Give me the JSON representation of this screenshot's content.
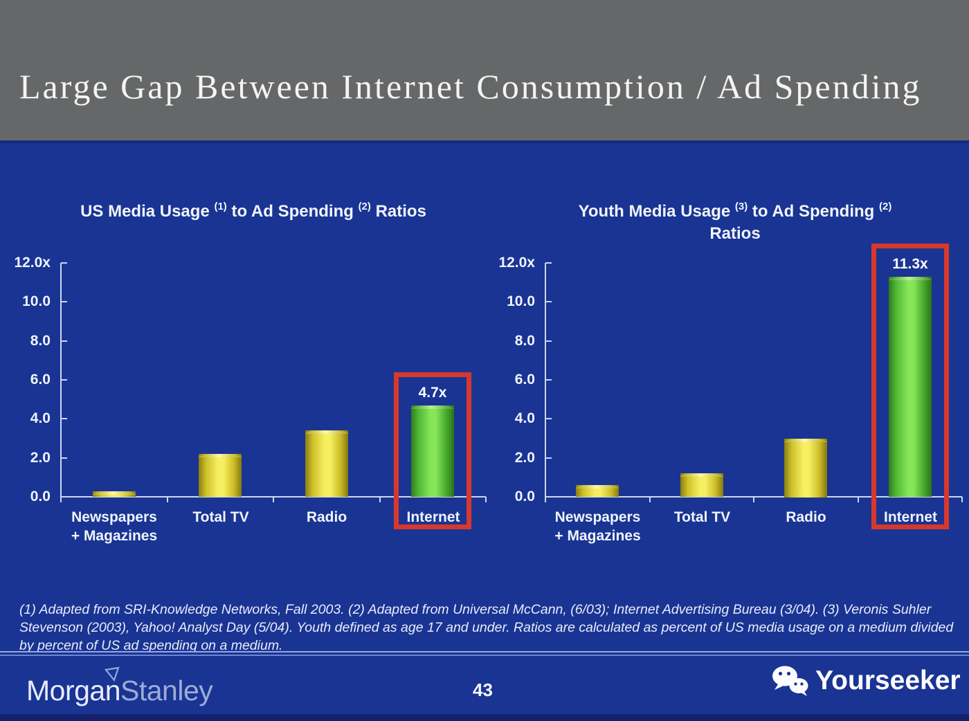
{
  "header": {
    "title": "Large Gap Between Internet Consumption / Ad Spending"
  },
  "footnote": {
    "lines": [
      "(1) Adapted from SRI-Knowledge Networks, Fall 2003.  (2) Adapted from Universal McCann, (6/03); Internet Advertising Bureau (3/04). (3) Veronis Suhler",
      "Stevenson (2003), Yahoo! Analyst Day (5/04).  Youth defined as age 17 and under.  Ratios are calculated as percent of US media usage on a medium divided",
      "by percent of US ad spending on a medium."
    ]
  },
  "footer": {
    "brand_part1": "Morgan",
    "brand_part2": "Stanley",
    "page_number": "43",
    "watermark_label": "Yourseeker",
    "watermark_icon": "wechat-icon",
    "brand_icon": "morgan-stanley-triangle-icon"
  },
  "colors": {
    "slide_blue": "#1a3494",
    "header_gray": "#666769",
    "highlight_red": "#d7382b",
    "bar_yellow": "#f6ef62",
    "bar_green": "#86e558",
    "axis_light_blue": "#ccd8f2",
    "bottom_strip_navy": "#14206b"
  },
  "chart_data": [
    {
      "type": "bar",
      "title": "US Media Usage (1) to Ad Spending (2) Ratios",
      "title_segments": [
        {
          "text": "US Media Usage "
        },
        {
          "text": "(1)",
          "sup": true
        },
        {
          "text": " to Ad Spending "
        },
        {
          "text": "(2)",
          "sup": true
        },
        {
          "text": " Ratios"
        }
      ],
      "title_line2": "",
      "categories": [
        [
          "Newspapers",
          "+ Magazines"
        ],
        [
          "Total TV"
        ],
        [
          "Radio"
        ],
        [
          "Internet"
        ]
      ],
      "values": [
        0.3,
        2.2,
        3.4,
        4.7
      ],
      "bar_colors": [
        "yellow",
        "yellow",
        "yellow",
        "green"
      ],
      "highlight": {
        "index": 3,
        "label": "4.7x"
      },
      "yticks": [
        "12.0x",
        "10.0",
        "8.0",
        "6.0",
        "4.0",
        "2.0",
        "0.0"
      ],
      "ylim": [
        0,
        12
      ],
      "xlabel": "",
      "ylabel": "",
      "grid": false,
      "legend": "none"
    },
    {
      "type": "bar",
      "title": "Youth Media Usage (3) to Ad Spending (2) Ratios",
      "title_segments": [
        {
          "text": "Youth Media Usage "
        },
        {
          "text": "(3)",
          "sup": true
        },
        {
          "text": " to Ad Spending "
        },
        {
          "text": "(2)",
          "sup": true
        }
      ],
      "title_line2": "Ratios",
      "categories": [
        [
          "Newspapers",
          "+ Magazines"
        ],
        [
          "Total TV"
        ],
        [
          "Radio"
        ],
        [
          "Internet"
        ]
      ],
      "values": [
        0.6,
        1.2,
        3.0,
        11.3
      ],
      "bar_colors": [
        "yellow",
        "yellow",
        "yellow",
        "green"
      ],
      "highlight": {
        "index": 3,
        "label": "11.3x"
      },
      "yticks": [
        "12.0x",
        "10.0",
        "8.0",
        "6.0",
        "4.0",
        "2.0",
        "0.0"
      ],
      "ylim": [
        0,
        12
      ],
      "xlabel": "",
      "ylabel": "",
      "grid": false,
      "legend": "none"
    }
  ]
}
